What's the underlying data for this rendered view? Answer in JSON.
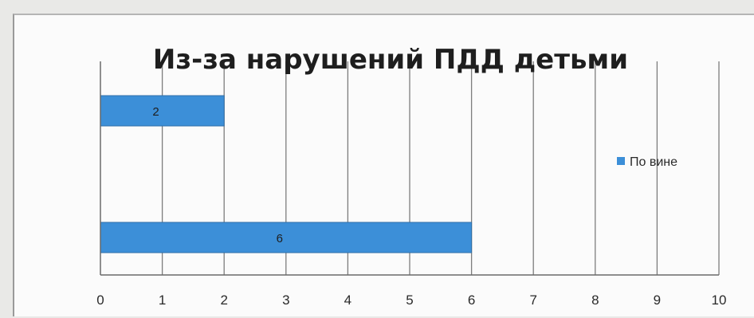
{
  "chart_data": {
    "type": "bar",
    "orientation": "horizontal",
    "title": "Из-за нарушений ПДД детьми",
    "xlabel": "",
    "ylabel": "",
    "xlim": [
      0,
      10
    ],
    "x_ticks": [
      "0",
      "1",
      "2",
      "3",
      "4",
      "5",
      "6",
      "7",
      "8",
      "9",
      "10"
    ],
    "categories": [
      "",
      ""
    ],
    "series": [
      {
        "name": "По вине",
        "color": "#3c8fd8",
        "values": [
          2,
          6
        ],
        "data_labels": [
          "2",
          "6"
        ]
      }
    ],
    "grid": "vertical",
    "legend_position": "right"
  }
}
